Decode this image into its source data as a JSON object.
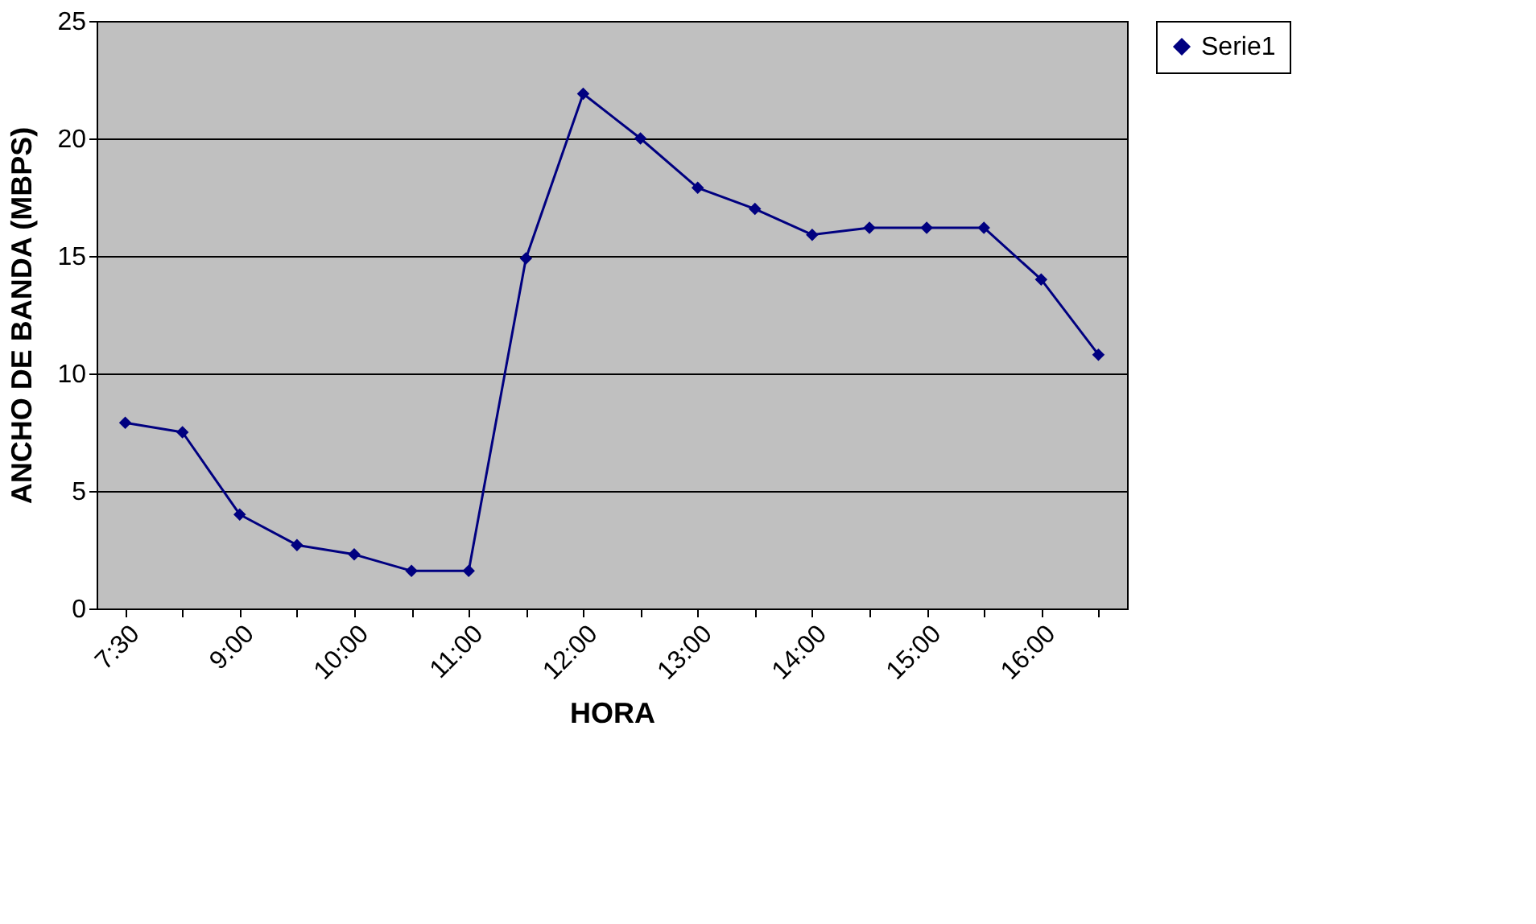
{
  "chart_data": {
    "type": "line",
    "xlabel": "HORA",
    "ylabel": "ANCHO DE BANDA (MBPS)",
    "categories": [
      "7:30",
      null,
      "9:00",
      null,
      "10:00",
      null,
      "11:00",
      null,
      "12:00",
      null,
      "13:00",
      null,
      "14:00",
      null,
      "15:00",
      null,
      "16:00",
      null
    ],
    "series": [
      {
        "name": "Serie1",
        "color": "#000080",
        "values": [
          7.9,
          7.5,
          4.0,
          2.7,
          2.3,
          1.6,
          1.6,
          14.9,
          21.9,
          20.0,
          17.9,
          17.0,
          15.9,
          16.2,
          16.2,
          16.2,
          14.0,
          10.8
        ]
      }
    ],
    "ylim": [
      0,
      25
    ],
    "yticks": [
      0,
      5,
      10,
      15,
      20,
      25
    ],
    "grid": "y",
    "legend": "right",
    "marker": "diamond",
    "line_style": "solid"
  }
}
